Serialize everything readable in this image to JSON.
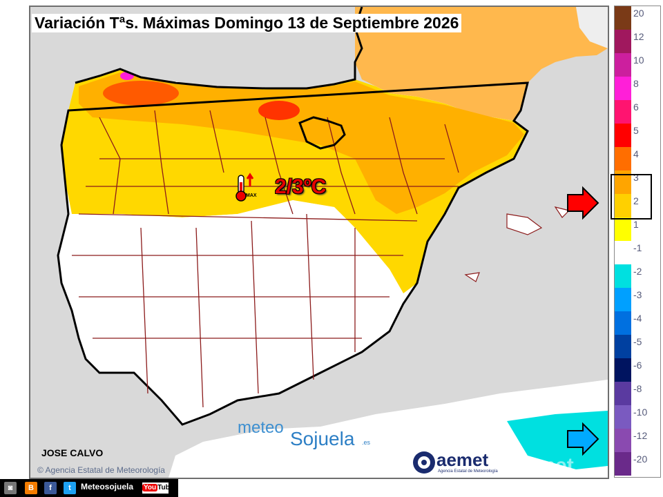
{
  "title": "Variación Tªs. Máximas Domingo 13 de Septiembre 2026",
  "author": "JOSE CALVO",
  "agency_copyright": "Agencia Estatal de Meteorología",
  "anomaly_label": "2/3ºC",
  "thermometer_label": "MAX",
  "brand": {
    "meteo": "meteo",
    "sojuela": "Sojuela",
    "tld": ".es"
  },
  "aemet": {
    "name": "aemet",
    "subtitle": "Agencia Estatal de Meteorología",
    "watermark": "aemet"
  },
  "footer": {
    "label": "Meteosojuela",
    "youtube_label": "You",
    "youtube_tube": "Tube"
  },
  "legend": [
    {
      "label": "20",
      "color": "#7a3a17"
    },
    {
      "label": "12",
      "color": "#a0185e"
    },
    {
      "label": "10",
      "color": "#cc1f9e"
    },
    {
      "label": "8",
      "color": "#ff1fd8"
    },
    {
      "label": "6",
      "color": "#ff1470"
    },
    {
      "label": "5",
      "color": "#ff0000"
    },
    {
      "label": "4",
      "color": "#ff6e00"
    },
    {
      "label": "3",
      "color": "#ffa500"
    },
    {
      "label": "2",
      "color": "#ffd000"
    },
    {
      "label": "1",
      "color": "#ffff00"
    },
    {
      "label": "-1",
      "color": "#ffffff"
    },
    {
      "label": "-2",
      "color": "#00e0e0"
    },
    {
      "label": "-3",
      "color": "#00a0ff"
    },
    {
      "label": "-4",
      "color": "#0070e0"
    },
    {
      "label": "-5",
      "color": "#0040a0"
    },
    {
      "label": "-6",
      "color": "#001460"
    },
    {
      "label": "-8",
      "color": "#5a3aa0"
    },
    {
      "label": "-10",
      "color": "#7a5ac0"
    },
    {
      "label": "-12",
      "color": "#8a4ab0"
    },
    {
      "label": "-20",
      "color": "#6a2a8a"
    }
  ],
  "colors": {
    "anomaly_text": "#e60000",
    "sea": "#d9d9d9",
    "land_neutral": "#ffffff",
    "anomaly_orange": "#ffb000",
    "anomaly_yellow": "#ffd800",
    "anomaly_red": "#ff3300",
    "borders": "#8b1a1a",
    "coastline": "#000000",
    "arrow_red": "#ff0000",
    "arrow_blue": "#00aaff"
  },
  "icons": {
    "thermometer": "thermometer-up-icon",
    "red_arrow": "arrow-right-icon",
    "blue_arrow": "arrow-right-icon",
    "copyright": "copyright-icon"
  }
}
